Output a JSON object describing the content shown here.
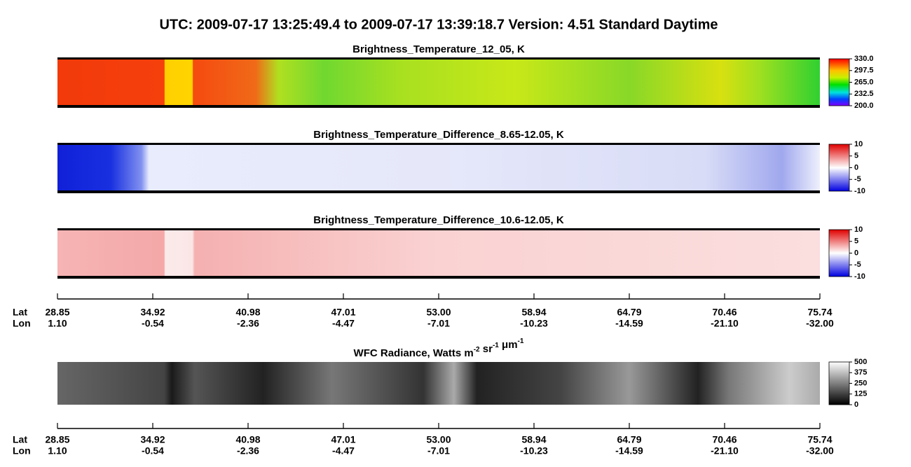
{
  "title": "UTC:  2009-07-17   13:25:49.4  to  2009-07-17   13:39:18.7    Version: 4.51  Standard Daytime",
  "panels": [
    {
      "title": "Brightness_Temperature_12_05, K",
      "colorbar": [
        "330.0",
        "297.5",
        "265.0",
        "232.5",
        "200.0"
      ]
    },
    {
      "title": "Brightness_Temperature_Difference_8.65-12.05, K",
      "colorbar": [
        "10",
        "5",
        "0",
        "-5",
        "-10"
      ]
    },
    {
      "title": "Brightness_Temperature_Difference_10.6-12.05, K",
      "colorbar": [
        "10",
        "5",
        "0",
        "-5",
        "-10"
      ]
    },
    {
      "title_parts": [
        {
          "text": "WFC Radiance, Watts m"
        },
        {
          "sup": "-2"
        },
        {
          "text": " sr"
        },
        {
          "sup": "-1"
        },
        {
          "text": " μm"
        },
        {
          "sup": "-1"
        }
      ],
      "colorbar": [
        "500",
        "375",
        "250",
        "125",
        "0"
      ]
    }
  ],
  "axis": {
    "lat_label": "Lat",
    "lon_label": "Lon",
    "lat": [
      "28.85",
      "34.92",
      "40.98",
      "47.01",
      "53.00",
      "58.94",
      "64.79",
      "70.46",
      "75.74"
    ],
    "lon": [
      "1.10",
      "-0.54",
      "-2.36",
      "-4.47",
      "-7.01",
      "-10.23",
      "-14.59",
      "-21.10",
      "-32.00"
    ]
  }
}
